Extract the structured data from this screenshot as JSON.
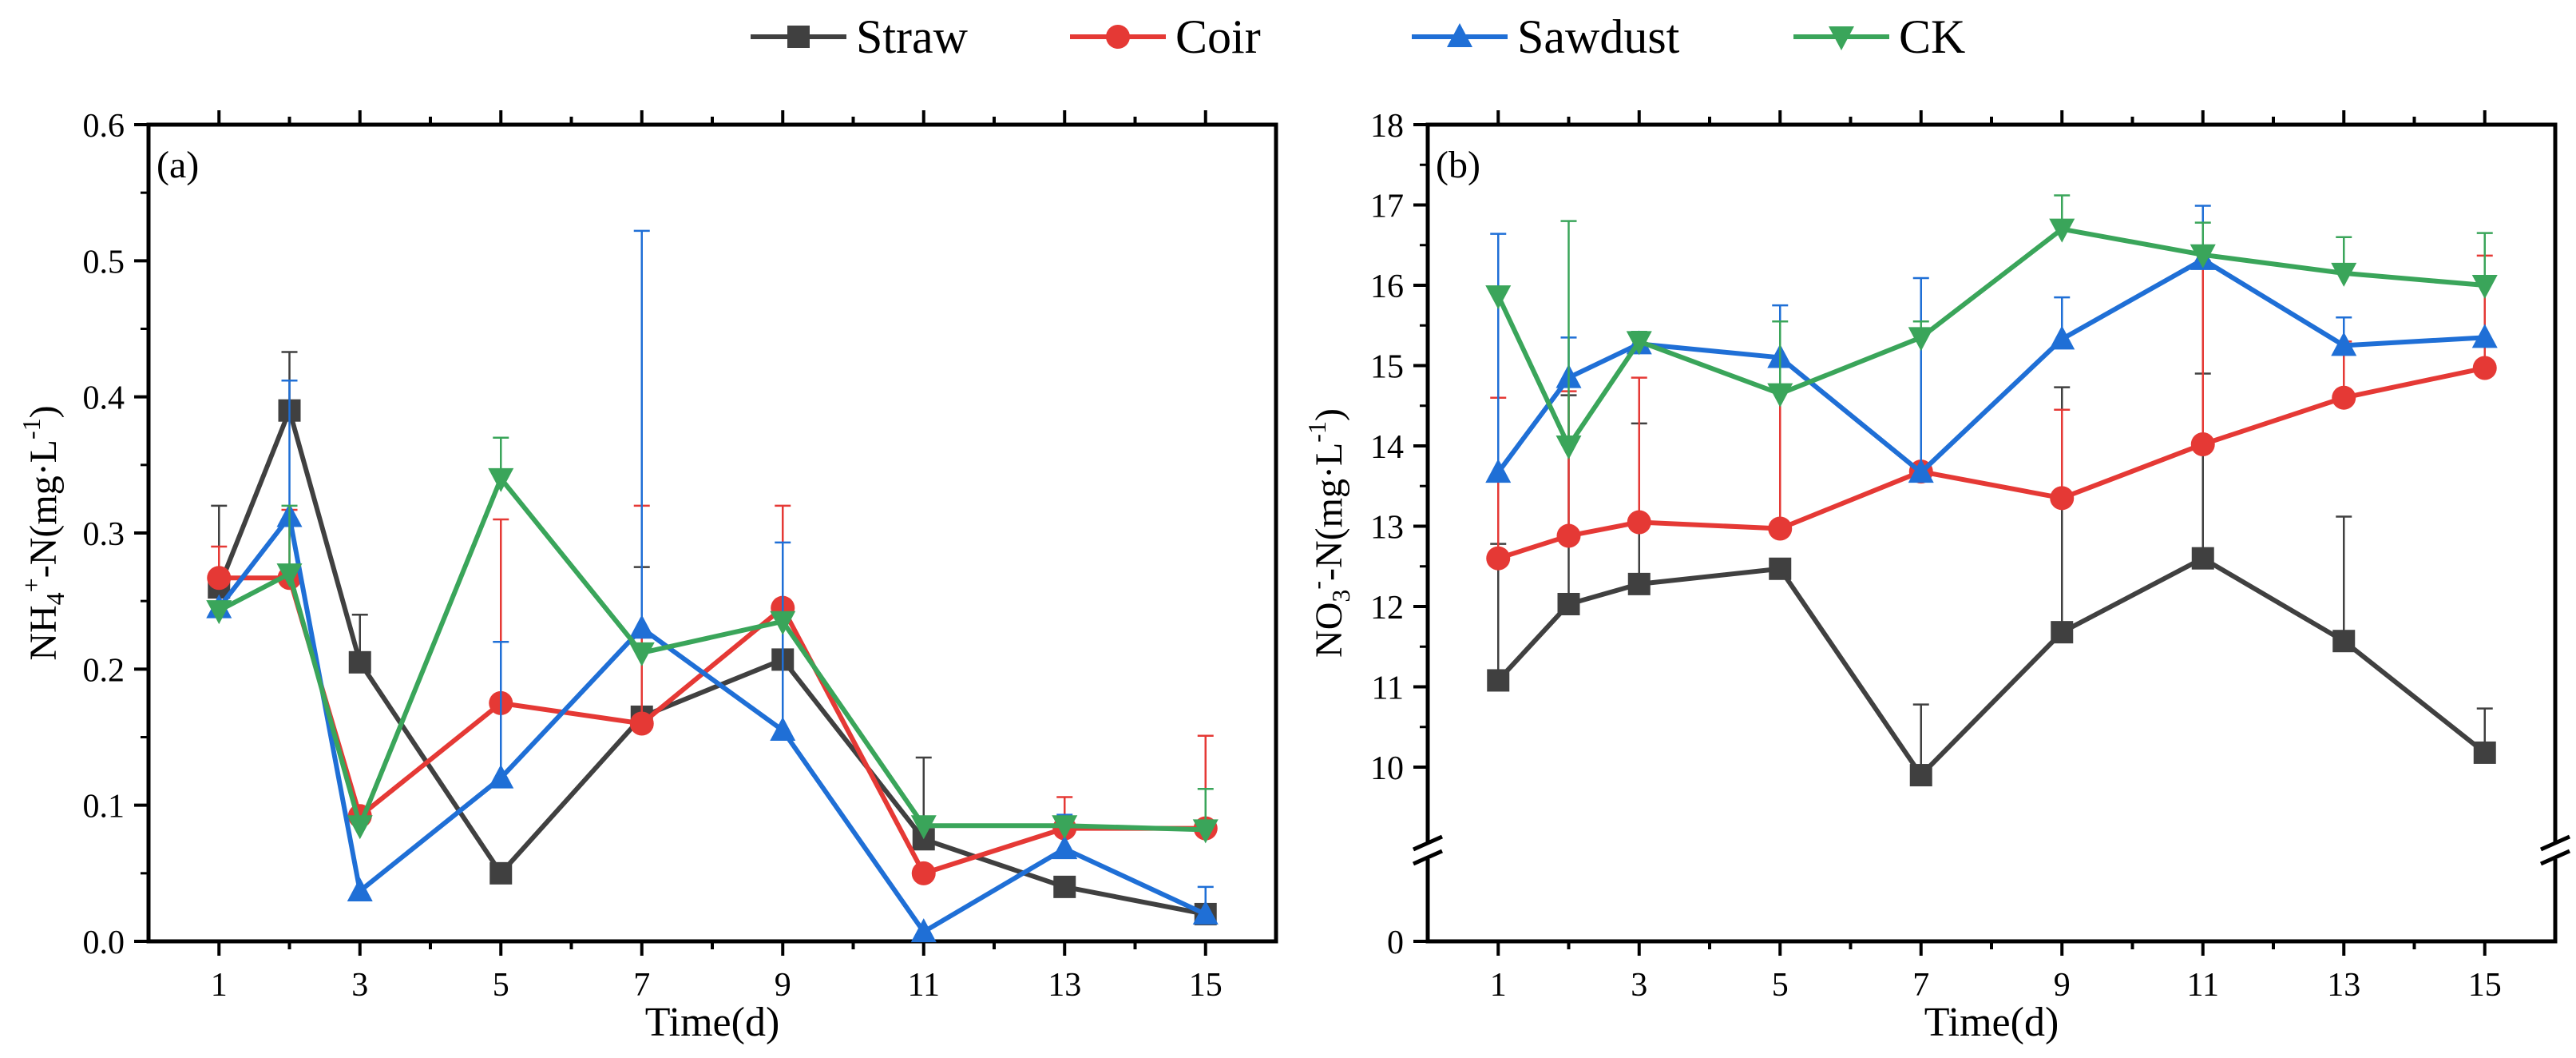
{
  "legend": [
    {
      "name": "Straw",
      "color": "#404040",
      "marker": "square"
    },
    {
      "name": "Coir",
      "color": "#e53935",
      "marker": "circle"
    },
    {
      "name": "Sawdust",
      "color": "#1f6fd6",
      "marker": "triangle-up"
    },
    {
      "name": "CK",
      "color": "#3aa55a",
      "marker": "triangle-down"
    }
  ],
  "chart_data": [
    {
      "type": "line",
      "panel_label": "(a)",
      "xlabel": "Time(d)",
      "ylabel_parts": {
        "base": "NH",
        "sub": "4",
        "sup": "+",
        "rest": "-N(mg·L",
        "unit_sup": "-1",
        "close": ")"
      },
      "x": [
        1,
        2,
        3,
        5,
        7,
        9,
        11,
        13,
        15
      ],
      "xticks": [
        1,
        3,
        5,
        7,
        9,
        11,
        13,
        15
      ],
      "xlim": [
        0,
        16
      ],
      "ylim": [
        0,
        0.6
      ],
      "yticks": [
        0,
        0.1,
        0.2,
        0.3,
        0.4,
        0.5,
        0.6
      ],
      "ytick_labels": [
        "0.0",
        "0.1",
        "0.2",
        "0.3",
        "0.4",
        "0.5",
        "0.6"
      ],
      "series": [
        {
          "name": "Straw",
          "values": [
            0.26,
            0.39,
            0.205,
            0.05,
            0.165,
            0.207,
            0.075,
            0.04,
            0.02
          ],
          "err": [
            0.06,
            0.043,
            0.035,
            0,
            0.11,
            0,
            0.06,
            0,
            0
          ]
        },
        {
          "name": "Coir",
          "values": [
            0.267,
            0.267,
            0.092,
            0.175,
            0.16,
            0.245,
            0.05,
            0.083,
            0.083
          ],
          "err": [
            0.023,
            0.05,
            0,
            0.135,
            0.16,
            0.075,
            0,
            0.023,
            0.068
          ]
        },
        {
          "name": "Sawdust",
          "values": [
            0.245,
            0.312,
            0.037,
            0.12,
            0.23,
            0.155,
            0.007,
            0.068,
            0.02
          ],
          "err": [
            0,
            0.1,
            0,
            0.1,
            0.292,
            0.138,
            0,
            0.025,
            0.02
          ]
        },
        {
          "name": "CK",
          "values": [
            0.243,
            0.27,
            0.085,
            0.34,
            0.212,
            0.235,
            0.085,
            0.085,
            0.082
          ],
          "err": [
            0,
            0.05,
            0,
            0.03,
            0,
            0,
            0,
            0,
            0.03
          ]
        }
      ]
    },
    {
      "type": "line",
      "panel_label": "(b)",
      "xlabel": "Time(d)",
      "ylabel_parts": {
        "base": "NO",
        "sub": "3",
        "sup": "-",
        "rest": "-N(mg·L",
        "unit_sup": "-1",
        "close": ")"
      },
      "x": [
        1,
        2,
        3,
        5,
        7,
        9,
        11,
        13,
        15
      ],
      "xticks": [
        1,
        3,
        5,
        7,
        9,
        11,
        13,
        15
      ],
      "xlim": [
        0,
        16
      ],
      "ylim": [
        9,
        18
      ],
      "axis_break": true,
      "yticks": [
        0,
        10,
        11,
        12,
        13,
        14,
        15,
        16,
        17,
        18
      ],
      "ytick_labels": [
        "0",
        "10",
        "11",
        "12",
        "13",
        "14",
        "15",
        "16",
        "17",
        "18"
      ],
      "series": [
        {
          "name": "Straw",
          "values": [
            11.08,
            12.03,
            12.28,
            12.47,
            9.9,
            11.68,
            12.6,
            11.57,
            10.18
          ],
          "err": [
            1.7,
            2.6,
            2.0,
            0,
            0.88,
            3.05,
            2.3,
            1.55,
            0.55
          ]
        },
        {
          "name": "Coir",
          "values": [
            12.6,
            12.88,
            13.05,
            12.97,
            13.68,
            13.35,
            14.02,
            14.6,
            14.97
          ],
          "err": [
            2.0,
            1.8,
            1.8,
            1.7,
            0,
            1.1,
            2.28,
            0.7,
            1.4
          ]
        },
        {
          "name": "Sawdust",
          "values": [
            13.67,
            14.85,
            15.27,
            15.1,
            13.67,
            15.33,
            16.32,
            15.25,
            15.35
          ],
          "err": [
            2.97,
            0.5,
            0.15,
            0.65,
            2.42,
            0.52,
            0.67,
            0.35,
            0
          ]
        },
        {
          "name": "CK",
          "values": [
            15.87,
            14.0,
            15.3,
            14.65,
            15.35,
            16.7,
            16.38,
            16.15,
            16.0
          ],
          "err": [
            0,
            2.8,
            0.12,
            0.9,
            0.2,
            0.42,
            0.4,
            0.45,
            0.65
          ]
        }
      ]
    }
  ]
}
